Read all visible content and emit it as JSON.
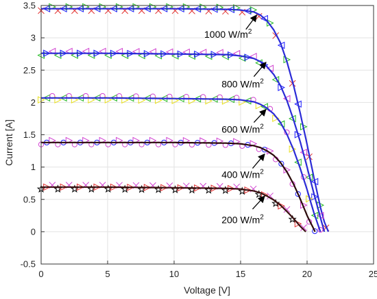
{
  "chart_data": {
    "type": "line",
    "title": "",
    "xlabel": "Voltage [V]",
    "ylabel": "Current [A]",
    "xlim": [
      0,
      25
    ],
    "ylim": [
      -0.5,
      3.5
    ],
    "x_ticks": [
      "0",
      "5",
      "10",
      "15",
      "20",
      "25"
    ],
    "y_ticks": [
      "-0.5",
      "0",
      "0.5",
      "1",
      "1.5",
      "2",
      "2.5",
      "3",
      "3.5"
    ],
    "grid": true,
    "legend": "none",
    "colors": {
      "model_line": "#2b2bd6",
      "model_line_200": "#3a1010",
      "markers": [
        "#e03030",
        "#22b822",
        "#1a1aff",
        "#d040d0",
        "#e8e020",
        "#000000"
      ]
    },
    "series": [
      {
        "irradiance_label": "1000 W/m",
        "superscript": "2",
        "isc": 3.45,
        "voc": 21.6,
        "points": [
          [
            0,
            3.45
          ],
          [
            5,
            3.45
          ],
          [
            10,
            3.45
          ],
          [
            14,
            3.44
          ],
          [
            15,
            3.43
          ],
          [
            16,
            3.4
          ],
          [
            16.5,
            3.35
          ],
          [
            17,
            3.26
          ],
          [
            17.5,
            3.12
          ],
          [
            18,
            2.92
          ],
          [
            18.5,
            2.62
          ],
          [
            19,
            2.25
          ],
          [
            19.5,
            1.82
          ],
          [
            20,
            1.35
          ],
          [
            20.5,
            0.85
          ],
          [
            21,
            0.38
          ],
          [
            21.3,
            0.15
          ],
          [
            21.6,
            0
          ]
        ]
      },
      {
        "irradiance_label": "800 W/m",
        "superscript": "2",
        "isc": 2.76,
        "voc": 21.3,
        "points": [
          [
            0,
            2.76
          ],
          [
            5,
            2.76
          ],
          [
            10,
            2.75
          ],
          [
            14,
            2.74
          ],
          [
            15,
            2.72
          ],
          [
            16,
            2.68
          ],
          [
            16.5,
            2.63
          ],
          [
            17,
            2.55
          ],
          [
            17.5,
            2.43
          ],
          [
            18,
            2.26
          ],
          [
            18.5,
            2.02
          ],
          [
            19,
            1.72
          ],
          [
            19.5,
            1.38
          ],
          [
            20,
            1.0
          ],
          [
            20.5,
            0.6
          ],
          [
            21,
            0.22
          ],
          [
            21.3,
            0
          ]
        ]
      },
      {
        "irradiance_label": "600 W/m",
        "superscript": "2",
        "isc": 2.07,
        "voc": 21.0,
        "points": [
          [
            0,
            2.07
          ],
          [
            5,
            2.07
          ],
          [
            10,
            2.06
          ],
          [
            14,
            2.05
          ],
          [
            15,
            2.04
          ],
          [
            16,
            2.01
          ],
          [
            16.5,
            1.97
          ],
          [
            17,
            1.91
          ],
          [
            17.5,
            1.82
          ],
          [
            18,
            1.69
          ],
          [
            18.5,
            1.5
          ],
          [
            19,
            1.26
          ],
          [
            19.5,
            0.97
          ],
          [
            20,
            0.65
          ],
          [
            20.5,
            0.3
          ],
          [
            21,
            0
          ]
        ]
      },
      {
        "irradiance_label": "400 W/m",
        "superscript": "2",
        "isc": 1.38,
        "voc": 20.6,
        "points": [
          [
            0,
            1.38
          ],
          [
            5,
            1.38
          ],
          [
            10,
            1.38
          ],
          [
            14,
            1.37
          ],
          [
            15,
            1.36
          ],
          [
            16,
            1.33
          ],
          [
            16.5,
            1.3
          ],
          [
            17,
            1.25
          ],
          [
            17.5,
            1.18
          ],
          [
            18,
            1.07
          ],
          [
            18.5,
            0.92
          ],
          [
            19,
            0.73
          ],
          [
            19.5,
            0.5
          ],
          [
            20,
            0.25
          ],
          [
            20.6,
            0
          ]
        ]
      },
      {
        "irradiance_label": "200 W/m",
        "superscript": "2",
        "isc": 0.69,
        "voc": 19.9,
        "points": [
          [
            0,
            0.69
          ],
          [
            5,
            0.69
          ],
          [
            10,
            0.68
          ],
          [
            14,
            0.67
          ],
          [
            15,
            0.66
          ],
          [
            16,
            0.63
          ],
          [
            16.5,
            0.6
          ],
          [
            17,
            0.55
          ],
          [
            17.5,
            0.49
          ],
          [
            18,
            0.41
          ],
          [
            18.5,
            0.31
          ],
          [
            19,
            0.2
          ],
          [
            19.5,
            0.08
          ],
          [
            19.9,
            0
          ]
        ]
      }
    ]
  }
}
